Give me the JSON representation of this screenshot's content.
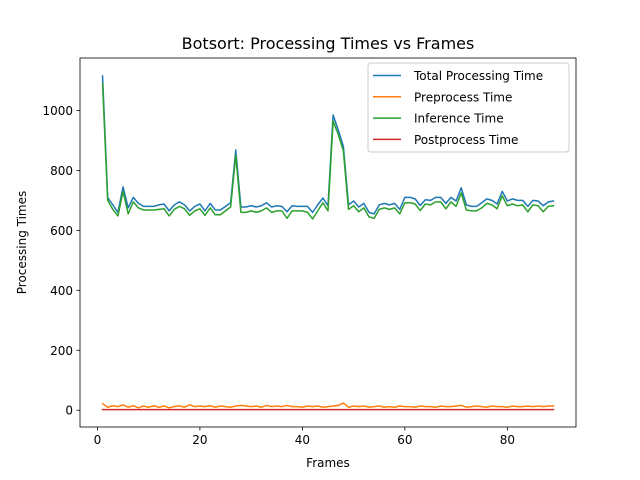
{
  "chart_data": {
    "type": "line",
    "title": "Botsort: Processing Times vs Frames",
    "xlabel": "Frames",
    "ylabel": "Processing Times",
    "xlim": [
      -3.4,
      93.4
    ],
    "ylim": [
      -56,
      1175
    ],
    "xticks": [
      0,
      20,
      40,
      60,
      80
    ],
    "yticks": [
      0,
      200,
      400,
      600,
      800,
      1000
    ],
    "grid": false,
    "legend_position": "top-right",
    "x": [
      1,
      2,
      3,
      4,
      5,
      6,
      7,
      8,
      9,
      10,
      11,
      12,
      13,
      14,
      15,
      16,
      17,
      18,
      19,
      20,
      21,
      22,
      23,
      24,
      25,
      26,
      27,
      28,
      29,
      30,
      31,
      32,
      33,
      34,
      35,
      36,
      37,
      38,
      39,
      40,
      41,
      42,
      43,
      44,
      45,
      46,
      47,
      48,
      49,
      50,
      51,
      52,
      53,
      54,
      55,
      56,
      57,
      58,
      59,
      60,
      61,
      62,
      63,
      64,
      65,
      66,
      67,
      68,
      69,
      70,
      71,
      72,
      73,
      74,
      75,
      76,
      77,
      78,
      79,
      80,
      81,
      82,
      83,
      84,
      85,
      86,
      87,
      88,
      89
    ],
    "series": [
      {
        "name": "Total Processing Time",
        "color": "#1f77b4",
        "values": [
          1115,
          710,
          685,
          660,
          745,
          675,
          710,
          690,
          680,
          680,
          680,
          685,
          688,
          665,
          685,
          695,
          685,
          665,
          680,
          688,
          665,
          690,
          668,
          668,
          680,
          692,
          868,
          678,
          678,
          682,
          678,
          682,
          692,
          678,
          682,
          680,
          662,
          682,
          680,
          680,
          680,
          660,
          685,
          708,
          682,
          985,
          935,
          880,
          685,
          698,
          678,
          690,
          660,
          655,
          685,
          690,
          685,
          690,
          670,
          710,
          710,
          705,
          683,
          702,
          700,
          710,
          710,
          690,
          710,
          698,
          742,
          685,
          680,
          680,
          692,
          705,
          700,
          688,
          730,
          698,
          705,
          700,
          700,
          680,
          700,
          698,
          682,
          695,
          698
        ]
      },
      {
        "name": "Preprocess Time",
        "color": "#ff7f0e",
        "values": [
          22,
          10,
          15,
          12,
          18,
          10,
          15,
          8,
          14,
          10,
          15,
          10,
          14,
          8,
          12,
          15,
          10,
          18,
          12,
          14,
          12,
          15,
          10,
          14,
          12,
          10,
          14,
          16,
          14,
          12,
          14,
          10,
          16,
          12,
          14,
          12,
          16,
          12,
          12,
          10,
          14,
          12,
          14,
          10,
          12,
          14,
          16,
          24,
          10,
          14,
          12,
          14,
          10,
          12,
          14,
          10,
          12,
          10,
          14,
          12,
          12,
          10,
          14,
          12,
          12,
          10,
          14,
          12,
          12,
          14,
          16,
          10,
          12,
          14,
          12,
          10,
          14,
          12,
          12,
          10,
          14,
          12,
          12,
          14,
          12,
          14,
          12,
          14,
          14
        ]
      },
      {
        "name": "Inference Time",
        "color": "#2ca02c",
        "values": [
          1090,
          700,
          670,
          648,
          730,
          655,
          695,
          675,
          668,
          668,
          668,
          670,
          672,
          648,
          670,
          680,
          672,
          650,
          665,
          672,
          650,
          675,
          652,
          652,
          665,
          678,
          850,
          660,
          660,
          665,
          660,
          665,
          675,
          660,
          665,
          665,
          640,
          665,
          665,
          665,
          660,
          638,
          665,
          692,
          665,
          965,
          920,
          865,
          670,
          682,
          662,
          675,
          645,
          640,
          670,
          675,
          670,
          675,
          655,
          692,
          692,
          688,
          666,
          688,
          685,
          695,
          695,
          672,
          695,
          680,
          725,
          668,
          665,
          665,
          675,
          690,
          685,
          672,
          715,
          682,
          688,
          682,
          685,
          662,
          685,
          682,
          662,
          680,
          682
        ]
      },
      {
        "name": "Postprocess Time",
        "color": "#d62728",
        "values": [
          2,
          2,
          2,
          2,
          2,
          2,
          2,
          2,
          2,
          2,
          2,
          2,
          2,
          2,
          2,
          2,
          2,
          2,
          2,
          2,
          2,
          2,
          2,
          2,
          2,
          2,
          2,
          2,
          2,
          2,
          2,
          2,
          2,
          2,
          2,
          2,
          2,
          2,
          2,
          2,
          2,
          2,
          2,
          2,
          2,
          2,
          2,
          2,
          2,
          2,
          2,
          2,
          2,
          2,
          2,
          2,
          2,
          2,
          2,
          2,
          2,
          2,
          2,
          2,
          2,
          2,
          2,
          2,
          2,
          2,
          2,
          2,
          2,
          2,
          2,
          2,
          2,
          2,
          2,
          2,
          2,
          2,
          2,
          2,
          2,
          2,
          2,
          2,
          2
        ]
      }
    ]
  }
}
